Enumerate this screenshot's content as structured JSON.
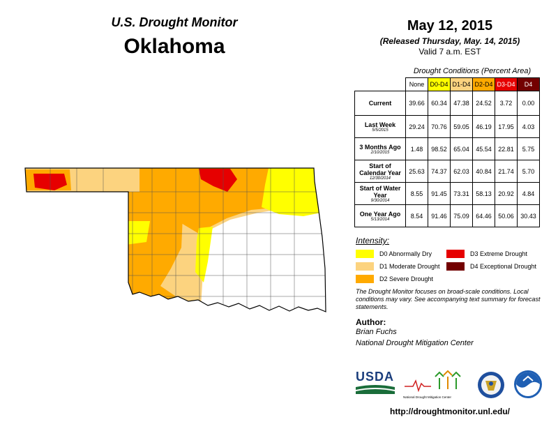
{
  "header": {
    "title": "U.S. Drought Monitor",
    "state": "Oklahoma",
    "date": "May 12, 2015",
    "release": "(Released Thursday, May. 14, 2015)",
    "valid": "Valid 7 a.m. EST"
  },
  "table": {
    "caption": "Drought Conditions (Percent Area)",
    "columns": [
      "None",
      "D0-D4",
      "D1-D4",
      "D2-D4",
      "D3-D4",
      "D4"
    ],
    "column_colors": [
      "#ffffff",
      "#ffff00",
      "#fcd37f",
      "#ffaa00",
      "#e60000",
      "#730000"
    ],
    "rows": [
      {
        "label": "Current",
        "date": "",
        "values": [
          "39.66",
          "60.34",
          "47.38",
          "24.52",
          "3.72",
          "0.00"
        ]
      },
      {
        "label": "Last Week",
        "date": "5/5/2015",
        "values": [
          "29.24",
          "70.76",
          "59.05",
          "46.19",
          "17.95",
          "4.03"
        ]
      },
      {
        "label": "3 Months Ago",
        "date": "2/10/2015",
        "values": [
          "1.48",
          "98.52",
          "65.04",
          "45.54",
          "22.81",
          "5.75"
        ]
      },
      {
        "label": "Start of Calendar Year",
        "date": "12/30/2014",
        "values": [
          "25.63",
          "74.37",
          "62.03",
          "40.84",
          "21.74",
          "5.70"
        ]
      },
      {
        "label": "Start of Water Year",
        "date": "9/30/2014",
        "values": [
          "8.55",
          "91.45",
          "73.31",
          "58.13",
          "20.92",
          "4.84"
        ]
      },
      {
        "label": "One Year Ago",
        "date": "5/13/2014",
        "values": [
          "8.54",
          "91.46",
          "75.09",
          "64.46",
          "50.06",
          "30.43"
        ]
      }
    ]
  },
  "legend": {
    "title": "Intensity:",
    "items": [
      {
        "label": "D0 Abnormally Dry",
        "color": "#ffff00"
      },
      {
        "label": "D1 Moderate Drought",
        "color": "#fcd37f"
      },
      {
        "label": "D2 Severe Drought",
        "color": "#ffaa00"
      },
      {
        "label": "D3 Extreme Drought",
        "color": "#e60000"
      },
      {
        "label": "D4 Exceptional Drought",
        "color": "#730000"
      }
    ]
  },
  "note": "The Drought Monitor focuses on broad-scale conditions. Local conditions may vary. See accompanying text summary for forecast statements.",
  "author": {
    "heading": "Author:",
    "name": "Brian Fuchs",
    "org": "National Drought Mitigation Center"
  },
  "logos": {
    "usda": "USDA",
    "ndmc": "National Drought Mitigation Center"
  },
  "url": "http://droughtmonitor.unl.edu/"
}
